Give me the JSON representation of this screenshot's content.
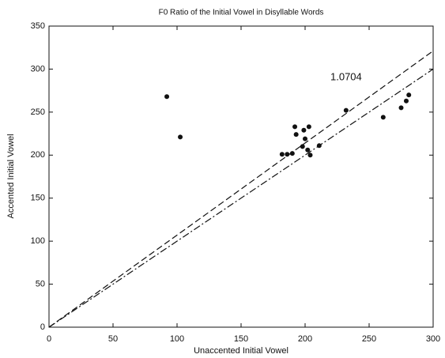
{
  "chart_data": {
    "type": "scatter",
    "title": "F0 Ratio of the Initial Vowel in Disyllable Words",
    "xlabel": "Unaccented Initial Vowel",
    "ylabel": "Accented Initial Vowel",
    "x": [
      92,
      102.5,
      182,
      186,
      190,
      192,
      193,
      199,
      198,
      200,
      202,
      203,
      204,
      211,
      232,
      261,
      275,
      279,
      281
    ],
    "y": [
      268,
      221,
      201,
      201,
      202,
      233,
      224,
      229,
      210,
      219,
      206,
      233,
      200,
      211,
      252,
      244,
      255,
      263,
      270
    ],
    "color": "#111111",
    "lines": [
      {
        "slope": 1,
        "style": "dash-dot"
      },
      {
        "slope": 1.0704,
        "style": "dashed"
      }
    ],
    "xlim": [
      0,
      300
    ],
    "ylim": [
      0,
      350
    ],
    "xticks": [
      0,
      50,
      100,
      150,
      200,
      250,
      300
    ],
    "yticks": [
      0,
      50,
      100,
      150,
      200,
      250,
      300,
      350
    ],
    "grid": false
  }
}
